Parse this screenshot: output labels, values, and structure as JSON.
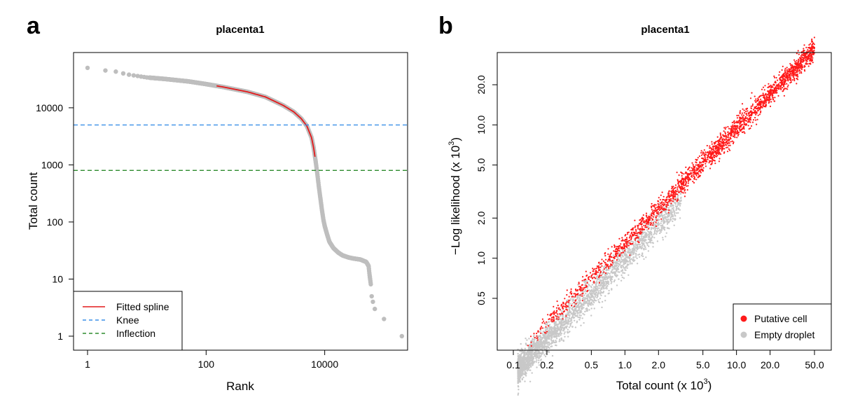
{
  "chart_data": [
    {
      "type": "scatter",
      "panel": "a",
      "title": "placenta1",
      "xlabel": "Rank",
      "ylabel": "Total count",
      "xscale": "log",
      "yscale": "log",
      "xlim": [
        1,
        250000
      ],
      "ylim": [
        0.8,
        70000
      ],
      "xticks": [
        1,
        100,
        10000
      ],
      "xtick_labels": [
        "1",
        "100",
        "10000"
      ],
      "yticks": [
        1,
        10,
        100,
        1000,
        10000
      ],
      "ytick_labels": [
        "1",
        "10",
        "100",
        "1000",
        "10000"
      ],
      "points_color": "#BEBEBE",
      "barcode_curve": {
        "rank": [
          1,
          2,
          3,
          4,
          5,
          7,
          10,
          20,
          50,
          100,
          200,
          500,
          1000,
          2000,
          3000,
          4000,
          5000,
          6000,
          6500,
          7000,
          7500,
          8000,
          8500,
          9000,
          9500,
          10000,
          11000,
          12000,
          14000,
          17000,
          20000,
          25000,
          30000,
          40000,
          50000,
          55000,
          57000,
          60000,
          62000,
          65000,
          70000,
          100000,
          200000
        ],
        "total_count": [
          50000,
          45000,
          43000,
          40000,
          38000,
          36000,
          34000,
          32000,
          29000,
          26000,
          23000,
          19000,
          15500,
          11000,
          8500,
          6500,
          4800,
          3000,
          2000,
          1200,
          700,
          400,
          250,
          160,
          110,
          85,
          60,
          45,
          35,
          29,
          26,
          24,
          23,
          22,
          20,
          17,
          12,
          8,
          5,
          4,
          3,
          2,
          1
        ]
      },
      "spline_range": [
        150,
        7000
      ],
      "knee": 5000,
      "inflection": 800,
      "series": [
        {
          "name": "Fitted spline",
          "color": "#E41A1C",
          "style": "solid"
        },
        {
          "name": "Knee",
          "color": "#3A8FE8",
          "style": "dashed"
        },
        {
          "name": "Inflection",
          "color": "#2E8B2E",
          "style": "dashed"
        }
      ],
      "legend": "bottom-left"
    },
    {
      "type": "scatter",
      "panel": "b",
      "title": "placenta1",
      "xlabel": "Total count (x 10",
      "xlabel_exponent": "3",
      "xlabel_suffix": ")",
      "ylabel": "−Log likelihood (x 10",
      "ylabel_exponent": "3",
      "ylabel_suffix": ")",
      "xscale": "log",
      "yscale": "log",
      "xlim": [
        0.1,
        60
      ],
      "ylim": [
        0.25,
        30
      ],
      "xticks": [
        0.1,
        0.2,
        0.5,
        1.0,
        2.0,
        5.0,
        10.0,
        20.0,
        50.0
      ],
      "xtick_labels": [
        "0.1",
        "0.2",
        "0.5",
        "1.0",
        "2.0",
        "5.0",
        "10.0",
        "20.0",
        "50.0"
      ],
      "yticks": [
        0.5,
        1.0,
        2.0,
        5.0,
        10.0,
        20.0
      ],
      "ytick_labels": [
        "0.5",
        "1.0",
        "2.0",
        "5.0",
        "10.0",
        "20.0"
      ],
      "relation": {
        "slope": 0.86,
        "intercept_at_1": 1.15
      },
      "series": [
        {
          "name": "Putative cell",
          "color": "#FF1A1A",
          "x_range": [
            0.12,
            55
          ]
        },
        {
          "name": "Empty droplet",
          "color": "#C8C8C8",
          "x_range": [
            0.1,
            3.5
          ]
        }
      ],
      "legend": "bottom-right"
    }
  ]
}
